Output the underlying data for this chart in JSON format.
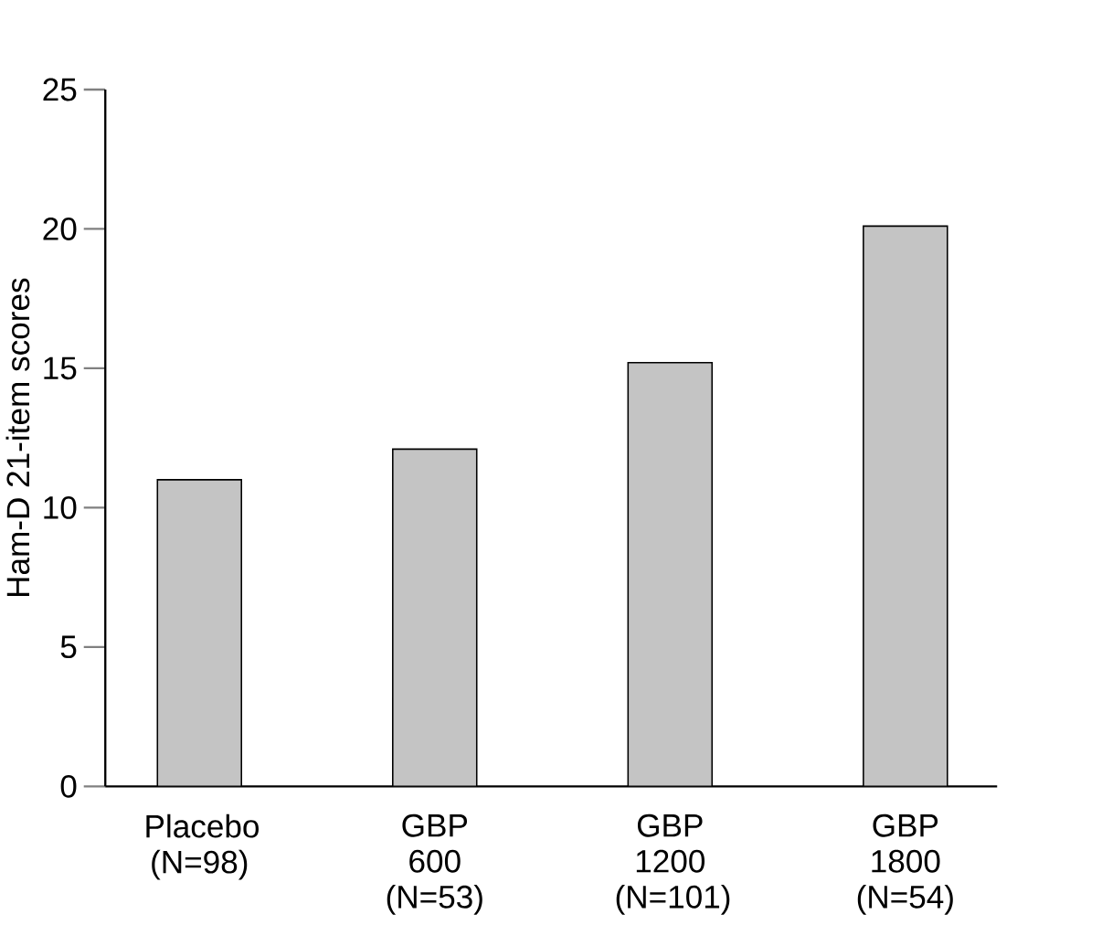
{
  "chart_data": {
    "type": "bar",
    "ylabel": "Ham-D 21-item scores",
    "categories": [
      "Placebo (N=98)",
      "GBP 600 (N=53)",
      "GBP 1200 (N=101)",
      "GBP 1800 (N=54)"
    ],
    "values": [
      11.0,
      12.1,
      15.2,
      20.1
    ],
    "color": "#c4c4c4",
    "ylim": [
      0,
      25
    ],
    "yticks": [
      0,
      5,
      10,
      15,
      20,
      25
    ]
  }
}
